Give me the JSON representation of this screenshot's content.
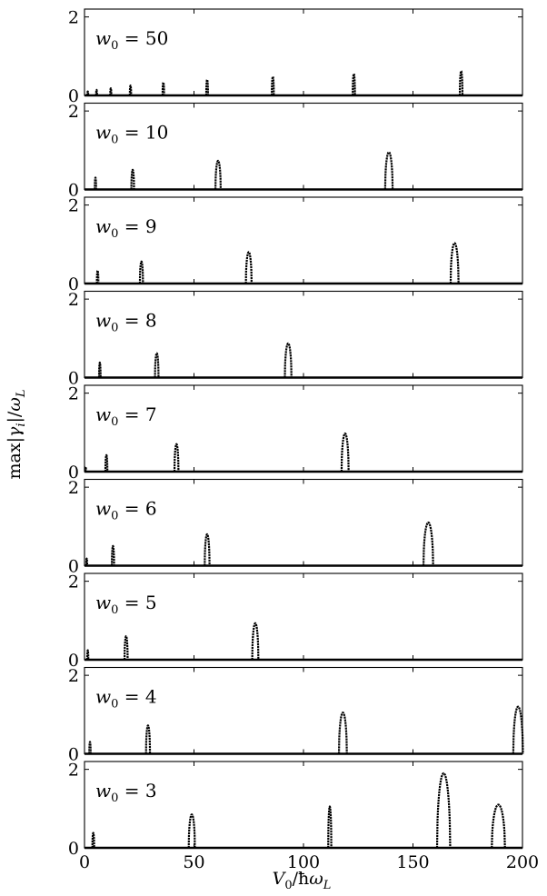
{
  "chart_data": {
    "type": "line",
    "xlabel": "V0/ħωL",
    "ylabel": "max|γi|/ωL",
    "xlim": [
      0,
      200
    ],
    "ylim": [
      0,
      2.2
    ],
    "xticks": [
      0,
      50,
      100,
      150,
      200
    ],
    "yticks": [
      0,
      2
    ],
    "panels": [
      {
        "label": "w0 = 50",
        "w0": "50",
        "peaks": [
          {
            "x": 1.5,
            "height": 0.1,
            "width": 0.4
          },
          {
            "x": 5.5,
            "height": 0.14,
            "width": 0.4
          },
          {
            "x": 12,
            "height": 0.18,
            "width": 0.5
          },
          {
            "x": 21,
            "height": 0.25,
            "width": 0.6
          },
          {
            "x": 36,
            "height": 0.33,
            "width": 0.7
          },
          {
            "x": 56,
            "height": 0.4,
            "width": 0.8
          },
          {
            "x": 86,
            "height": 0.48,
            "width": 0.9
          },
          {
            "x": 123,
            "height": 0.55,
            "width": 1.0
          },
          {
            "x": 172,
            "height": 0.62,
            "width": 1.2
          }
        ]
      },
      {
        "label": "w0 = 10",
        "w0": "10",
        "peaks": [
          {
            "x": 5,
            "height": 0.3,
            "width": 0.6
          },
          {
            "x": 22,
            "height": 0.5,
            "width": 1.2
          },
          {
            "x": 61,
            "height": 0.73,
            "width": 2.4
          },
          {
            "x": 139,
            "height": 0.95,
            "width": 3.4
          }
        ]
      },
      {
        "label": "w0 = 9",
        "w0": "9",
        "peaks": [
          {
            "x": 6,
            "height": 0.33,
            "width": 0.7
          },
          {
            "x": 26,
            "height": 0.56,
            "width": 1.4
          },
          {
            "x": 75,
            "height": 0.8,
            "width": 2.6
          },
          {
            "x": 169,
            "height": 1.03,
            "width": 3.6
          }
        ]
      },
      {
        "label": "w0 = 8",
        "w0": "8",
        "peaks": [
          {
            "x": 7,
            "height": 0.38,
            "width": 0.7
          },
          {
            "x": 33,
            "height": 0.62,
            "width": 1.6
          },
          {
            "x": 93,
            "height": 0.87,
            "width": 3.0
          }
        ]
      },
      {
        "label": "w0 = 7",
        "w0": "7",
        "peaks": [
          {
            "x": 0.5,
            "height": 0.12,
            "width": 0.4
          },
          {
            "x": 10,
            "height": 0.42,
            "width": 0.9
          },
          {
            "x": 42,
            "height": 0.7,
            "width": 1.8
          },
          {
            "x": 119,
            "height": 0.97,
            "width": 3.2
          }
        ]
      },
      {
        "label": "w0 = 6",
        "w0": "6",
        "peaks": [
          {
            "x": 1,
            "height": 0.18,
            "width": 0.4
          },
          {
            "x": 13,
            "height": 0.5,
            "width": 1.0
          },
          {
            "x": 56,
            "height": 0.8,
            "width": 2.2
          },
          {
            "x": 157,
            "height": 1.1,
            "width": 4.4
          }
        ]
      },
      {
        "label": "w0 = 5",
        "w0": "5",
        "peaks": [
          {
            "x": 1.5,
            "height": 0.24,
            "width": 0.5
          },
          {
            "x": 19,
            "height": 0.6,
            "width": 1.4
          },
          {
            "x": 78,
            "height": 0.93,
            "width": 2.8
          }
        ]
      },
      {
        "label": "w0 = 4",
        "w0": "4",
        "peaks": [
          {
            "x": 2.5,
            "height": 0.3,
            "width": 0.6
          },
          {
            "x": 29,
            "height": 0.72,
            "width": 1.8
          },
          {
            "x": 118,
            "height": 1.05,
            "width": 3.6
          },
          {
            "x": 198,
            "height": 1.2,
            "width": 4.4
          }
        ]
      },
      {
        "label": "w0 = 3",
        "w0": "3",
        "peaks": [
          {
            "x": 4,
            "height": 0.38,
            "width": 0.8
          },
          {
            "x": 49,
            "height": 0.85,
            "width": 2.8
          },
          {
            "x": 112,
            "height": 1.05,
            "width": 1.4
          },
          {
            "x": 164,
            "height": 1.9,
            "width": 6.0
          },
          {
            "x": 189,
            "height": 1.1,
            "width": 6.0
          }
        ]
      }
    ]
  }
}
